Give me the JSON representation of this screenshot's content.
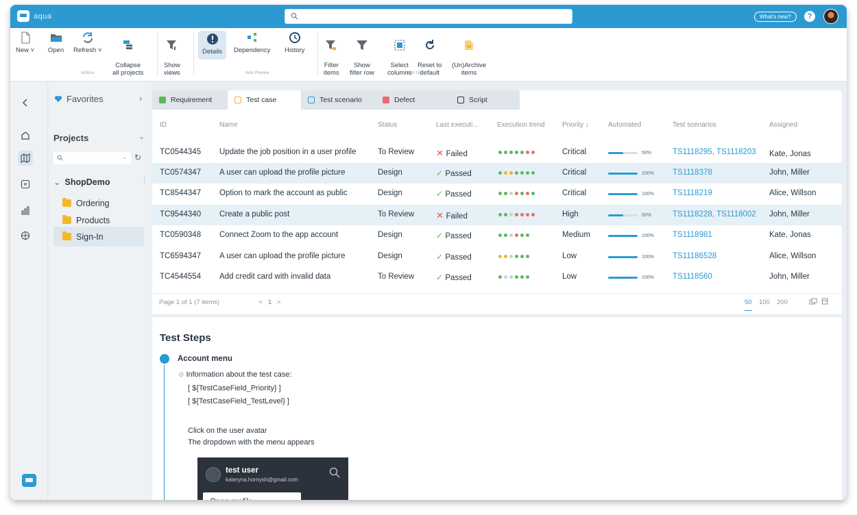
{
  "app": {
    "logo_text": "aqua"
  },
  "topbar": {
    "whats_new": "What's new?",
    "help": "?"
  },
  "ribbon": {
    "buttons": {
      "new": "New ˅",
      "open": "Open",
      "refresh": "Refresh ˅",
      "collapse": "Collapse\nall projects",
      "show_views": "Show\nviews",
      "details": "Details",
      "dependency": "Dependency",
      "history": "History",
      "filter_items": "Filter\nitems",
      "show_filter_row": "Show\nfilter row",
      "select_columns": "Select\ncolumns",
      "reset_default": "Reset to\ndefault",
      "unarchive": "(Un)Archive\nitems"
    },
    "groups": {
      "actions": "Actions",
      "views": "Views",
      "item_preview": "Item Preview",
      "item_grid": "Item Grid"
    }
  },
  "sidebar": {
    "favorites": "Favorites",
    "projects": "Projects",
    "tree_root": "ShopDemo",
    "folders": [
      "Ordering",
      "Products",
      "Sign-In"
    ]
  },
  "tabs": [
    "Requirement",
    "Test case",
    "Test scenario",
    "Defect",
    "Script"
  ],
  "grid": {
    "columns": [
      "ID",
      "Name",
      "Status",
      "Last executi...",
      "Execution trend",
      "Priority ↓",
      "Automated",
      "Test scenarios",
      "Assigned"
    ],
    "rows": [
      {
        "id": "TC0544345",
        "name": "Update the job position in a user profile",
        "status": "To Review",
        "last": "Failed",
        "last_ok": false,
        "trend": [
          "#5cb85c",
          "#5cb85c",
          "#5cb85c",
          "#5cb85c",
          "#5cb85c",
          "#e86b6b",
          "#e86b6b"
        ],
        "priority": "Critical",
        "automated": 50,
        "automated_label": "50%",
        "scenarios": "TS1118295, TS1118203",
        "assigned": "Kate, Jonas"
      },
      {
        "id": "TC0574347",
        "name": "A user can upload the profile picture",
        "status": "Design",
        "last": "Passed",
        "last_ok": true,
        "trend": [
          "#5cb85c",
          "#f0b429",
          "#f0b429",
          "#5cb85c",
          "#5cb85c",
          "#5cb85c",
          "#5cb85c"
        ],
        "priority": "Critical",
        "automated": 100,
        "automated_label": "100%",
        "scenarios": "TS1118378",
        "assigned": "John, Miller"
      },
      {
        "id": "TC8544347",
        "name": "Option to mark the account as public",
        "status": "Design",
        "last": "Passed",
        "last_ok": true,
        "trend": [
          "#5cb85c",
          "#5cb85c",
          "#c9d0d6",
          "#e86b6b",
          "#5cb85c",
          "#e86b6b",
          "#5cb85c"
        ],
        "priority": "Critical",
        "automated": 100,
        "automated_label": "100%",
        "scenarios": "TS1118219",
        "assigned": "Alice, Willson"
      },
      {
        "id": "TC9544340",
        "name": "Create a public post",
        "status": "To Review",
        "last": "Failed",
        "last_ok": false,
        "trend": [
          "#5cb85c",
          "#5cb85c",
          "#c9d0d6",
          "#e86b6b",
          "#e86b6b",
          "#e86b6b",
          "#e86b6b"
        ],
        "priority": "High",
        "automated": 50,
        "automated_label": "50%",
        "scenarios": "TS1118228, TS1118002",
        "assigned": "John, Miller"
      },
      {
        "id": "TC0590348",
        "name": "Connect Zoom to the app account",
        "status": "Design",
        "last": "Passed",
        "last_ok": true,
        "trend": [
          "#5cb85c",
          "#5cb85c",
          "#c9d0d6",
          "#e86b6b",
          "#5cb85c",
          "#5cb85c"
        ],
        "priority": "Medium",
        "automated": 100,
        "automated_label": "100%",
        "scenarios": "TS1118981",
        "assigned": "Kate, Jonas"
      },
      {
        "id": "TC6594347",
        "name": "A user can upload the profile picture",
        "status": "Design",
        "last": "Passed",
        "last_ok": true,
        "trend": [
          "#f0b429",
          "#f0b429",
          "#c9d0d6",
          "#5cb85c",
          "#5cb85c",
          "#5cb85c"
        ],
        "priority": "Low",
        "automated": 100,
        "automated_label": "100%",
        "scenarios": "TS11186528",
        "assigned": "Alice, Willson"
      },
      {
        "id": "TC4544554",
        "name": "Add credit card with invalid data",
        "status": "To Review",
        "last": "Passed",
        "last_ok": true,
        "trend": [
          "#5cb85c",
          "#c9d0d6",
          "#c9d0d6",
          "#5cb85c",
          "#5cb85c",
          "#5cb85c"
        ],
        "priority": "Low",
        "automated": 100,
        "automated_label": "100%",
        "scenarios": "TS1118560",
        "assigned": "John, Miller"
      }
    ]
  },
  "pager": {
    "summary": "Page 1 of 1 (7 items)",
    "prev": "<",
    "page": "1",
    "next": ">",
    "sizes": [
      "50",
      "100",
      "200"
    ]
  },
  "steps": {
    "title": "Test Steps",
    "step_title": "Account menu",
    "info_label": "Information about the test case:",
    "field1": "[ ${TestCaseField_Priority} ]",
    "field2": "[ ${TestCaseField_TestLevel} ]",
    "line1": "Click on the user avatar",
    "line2": "The dropdown with the menu appears",
    "shot_name": "test user",
    "shot_email": "kateryna.hornysh@gmail.com",
    "shot_menu": "Open profile"
  },
  "colors": {
    "accent": "#2b9ad2",
    "pass": "#5cb85c",
    "fail": "#e3544d",
    "folder": "#f3b82a"
  }
}
